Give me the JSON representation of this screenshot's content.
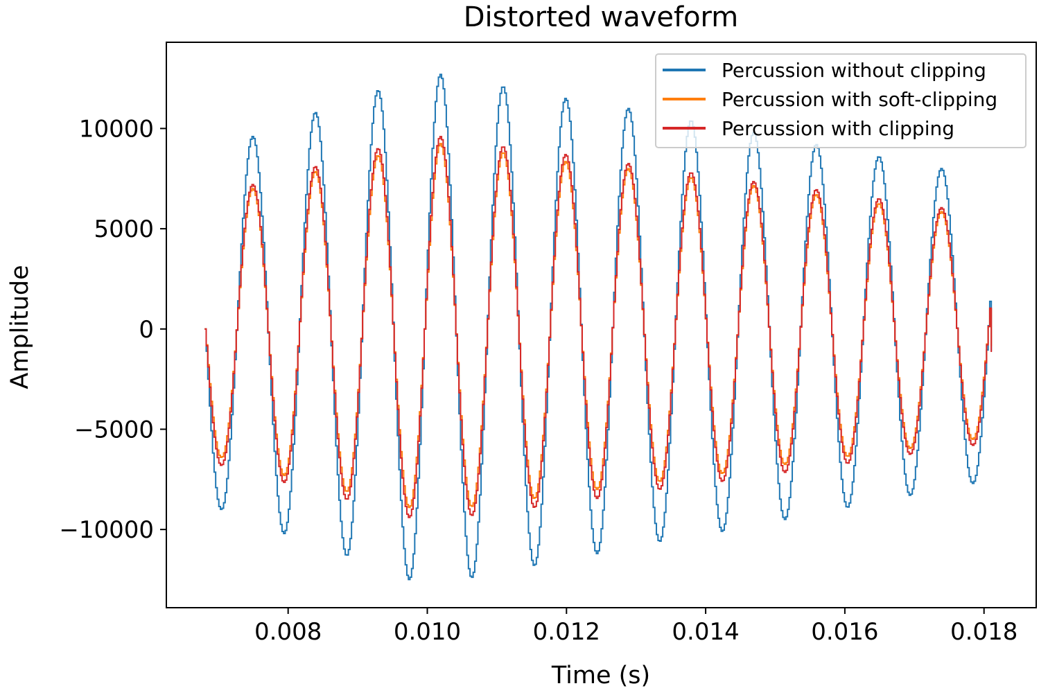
{
  "chart_data": {
    "type": "line",
    "title": "Distorted waveform",
    "xlabel": "Time (s)",
    "ylabel": "Amplitude",
    "xlim": [
      0.00625,
      0.01875
    ],
    "ylim": [
      -13900,
      14300
    ],
    "x_ticks": [
      0.008,
      0.01,
      0.012,
      0.014,
      0.016,
      0.018
    ],
    "x_tick_labels": [
      "0.008",
      "0.010",
      "0.012",
      "0.014",
      "0.016",
      "0.018"
    ],
    "y_ticks": [
      -10000,
      -5000,
      0,
      5000,
      10000
    ],
    "y_tick_labels": [
      "−10000",
      "−5000",
      "0",
      "5000",
      "10000"
    ],
    "grid": false,
    "legend_position": "top-right",
    "line_style": "step",
    "x_start": 0.0068,
    "x_end": 0.01812,
    "carrier_frequency_hz": 1111,
    "sample_step_s": 2.27e-05,
    "series": [
      {
        "name": "Percussion without clipping",
        "color": "#1f77b4",
        "z": 1,
        "start_value": 0,
        "end_value": -1100,
        "peaks": [
          {
            "x": 0.00748,
            "y": 9600
          },
          {
            "x": 0.00838,
            "y": 10800
          },
          {
            "x": 0.00928,
            "y": 11900
          },
          {
            "x": 0.01018,
            "y": 12700
          },
          {
            "x": 0.01108,
            "y": 12100
          },
          {
            "x": 0.01198,
            "y": 11500
          },
          {
            "x": 0.01288,
            "y": 11000
          },
          {
            "x": 0.01378,
            "y": 10400
          },
          {
            "x": 0.01468,
            "y": 9800
          },
          {
            "x": 0.01558,
            "y": 9200
          },
          {
            "x": 0.01648,
            "y": 8600
          },
          {
            "x": 0.01738,
            "y": 8000
          }
        ],
        "troughs": [
          {
            "x": 0.00703,
            "y": -9000
          },
          {
            "x": 0.00793,
            "y": -10200
          },
          {
            "x": 0.00883,
            "y": -11300
          },
          {
            "x": 0.00973,
            "y": -12500
          },
          {
            "x": 0.01063,
            "y": -12400
          },
          {
            "x": 0.01153,
            "y": -11800
          },
          {
            "x": 0.01243,
            "y": -11200
          },
          {
            "x": 0.01333,
            "y": -10600
          },
          {
            "x": 0.01423,
            "y": -10100
          },
          {
            "x": 0.01513,
            "y": -9500
          },
          {
            "x": 0.01603,
            "y": -8900
          },
          {
            "x": 0.01693,
            "y": -8300
          },
          {
            "x": 0.01783,
            "y": -7700
          }
        ]
      },
      {
        "name": "Percussion with soft-clipping",
        "color": "#ff7f0e",
        "z": 2,
        "start_value": 0,
        "end_value": -850,
        "peaks": [
          {
            "x": 0.00748,
            "y": 7000
          },
          {
            "x": 0.00838,
            "y": 7850
          },
          {
            "x": 0.00928,
            "y": 8650
          },
          {
            "x": 0.01018,
            "y": 9250
          },
          {
            "x": 0.01108,
            "y": 8800
          },
          {
            "x": 0.01198,
            "y": 8350
          },
          {
            "x": 0.01288,
            "y": 8000
          },
          {
            "x": 0.01378,
            "y": 7550
          },
          {
            "x": 0.01468,
            "y": 7150
          },
          {
            "x": 0.01558,
            "y": 6700
          },
          {
            "x": 0.01648,
            "y": 6250
          },
          {
            "x": 0.01738,
            "y": 5850
          }
        ],
        "troughs": [
          {
            "x": 0.00703,
            "y": -6400
          },
          {
            "x": 0.00793,
            "y": -7300
          },
          {
            "x": 0.00883,
            "y": -8100
          },
          {
            "x": 0.00973,
            "y": -8900
          },
          {
            "x": 0.01063,
            "y": -8850
          },
          {
            "x": 0.01153,
            "y": -8450
          },
          {
            "x": 0.01243,
            "y": -8000
          },
          {
            "x": 0.01333,
            "y": -7600
          },
          {
            "x": 0.01423,
            "y": -7200
          },
          {
            "x": 0.01513,
            "y": -6750
          },
          {
            "x": 0.01603,
            "y": -6350
          },
          {
            "x": 0.01693,
            "y": -5950
          },
          {
            "x": 0.01783,
            "y": -5500
          }
        ]
      },
      {
        "name": "Percussion with clipping",
        "color": "#d62728",
        "z": 3,
        "start_value": 0,
        "end_value": -1150,
        "peaks": [
          {
            "x": 0.00748,
            "y": 7200
          },
          {
            "x": 0.00838,
            "y": 8100
          },
          {
            "x": 0.00928,
            "y": 9000
          },
          {
            "x": 0.01018,
            "y": 9600
          },
          {
            "x": 0.01108,
            "y": 9100
          },
          {
            "x": 0.01198,
            "y": 8700
          },
          {
            "x": 0.01288,
            "y": 8250
          },
          {
            "x": 0.01378,
            "y": 7800
          },
          {
            "x": 0.01468,
            "y": 7350
          },
          {
            "x": 0.01558,
            "y": 6950
          },
          {
            "x": 0.01648,
            "y": 6500
          },
          {
            "x": 0.01738,
            "y": 6050
          }
        ],
        "troughs": [
          {
            "x": 0.00703,
            "y": -6800
          },
          {
            "x": 0.00793,
            "y": -7650
          },
          {
            "x": 0.00883,
            "y": -8500
          },
          {
            "x": 0.00973,
            "y": -9400
          },
          {
            "x": 0.01063,
            "y": -9300
          },
          {
            "x": 0.01153,
            "y": -8900
          },
          {
            "x": 0.01243,
            "y": -8450
          },
          {
            "x": 0.01333,
            "y": -8000
          },
          {
            "x": 0.01423,
            "y": -7600
          },
          {
            "x": 0.01513,
            "y": -7150
          },
          {
            "x": 0.01603,
            "y": -6700
          },
          {
            "x": 0.01693,
            "y": -6250
          },
          {
            "x": 0.01783,
            "y": -5800
          }
        ]
      }
    ],
    "legend_order": [
      0,
      1,
      2
    ]
  }
}
